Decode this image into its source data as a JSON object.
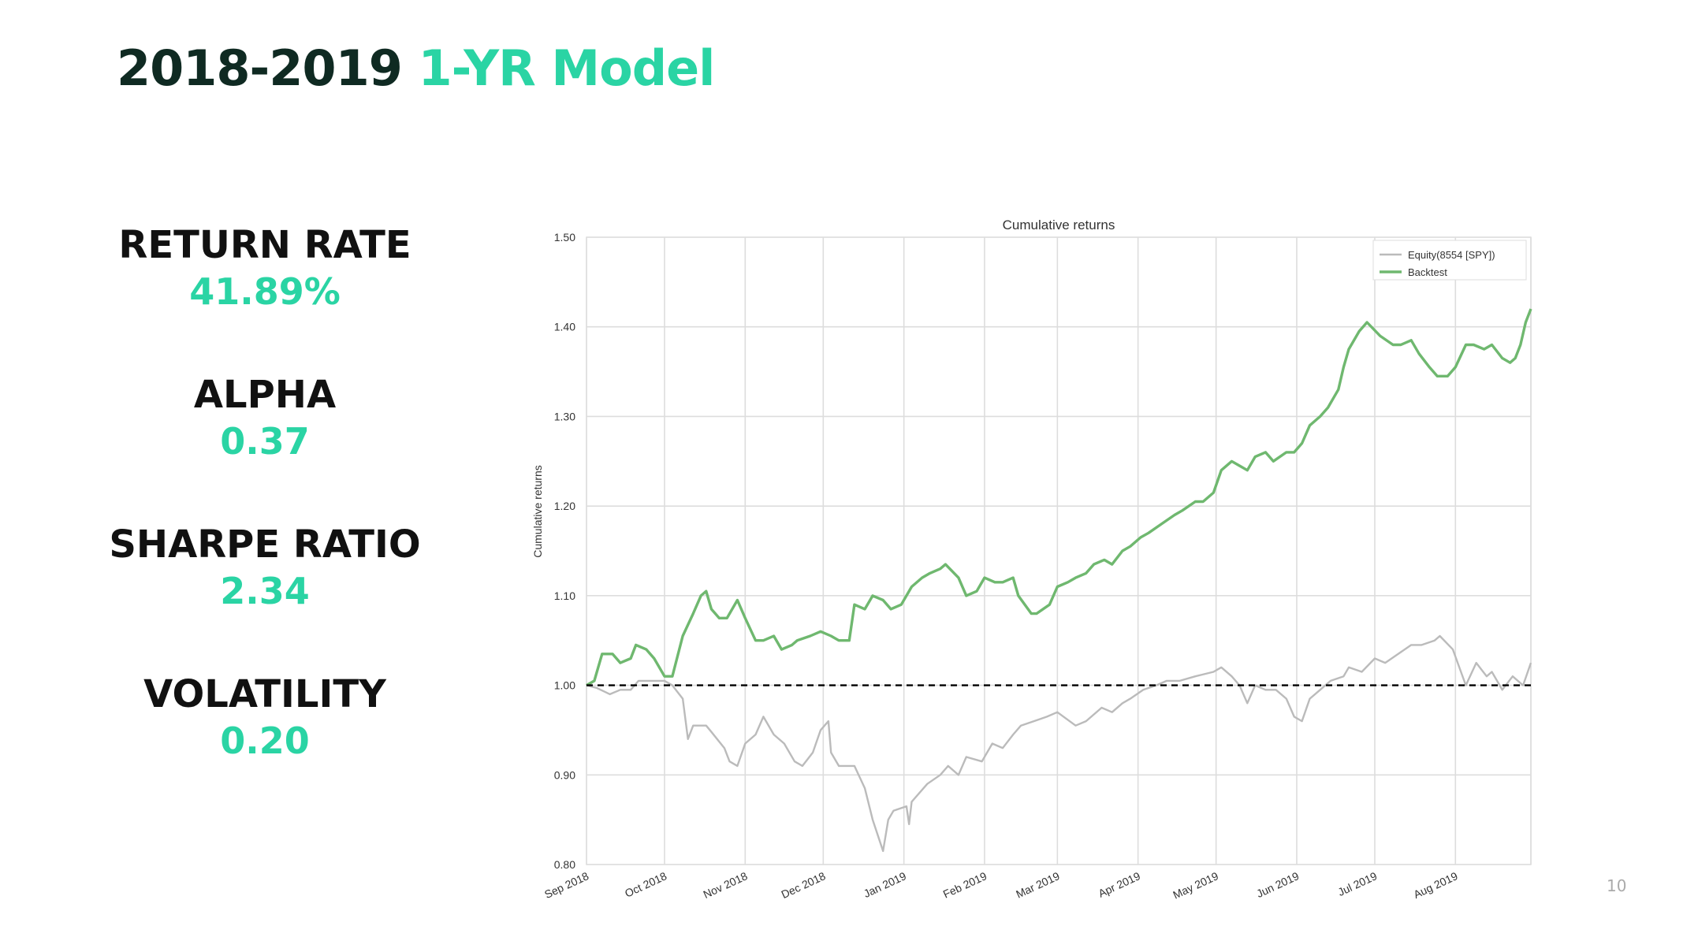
{
  "slide": {
    "title_main": "2018-2019",
    "title_accent": "1-YR Model",
    "page_number": "10",
    "accent_color": "#2ad4a4"
  },
  "metrics": [
    {
      "label": "RETURN RATE",
      "value": "41.89%"
    },
    {
      "label": "ALPHA",
      "value": "0.37"
    },
    {
      "label": "SHARPE RATIO",
      "value": "2.34"
    },
    {
      "label": "VOLATILITY",
      "value": "0.20"
    }
  ],
  "chart_data": {
    "type": "line",
    "title": "Cumulative returns",
    "xlabel": "",
    "ylabel": "Cumulative returns",
    "x_ticks": [
      "Sep 2018",
      "Oct 2018",
      "Nov 2018",
      "Dec 2018",
      "Jan 2019",
      "Feb 2019",
      "Mar 2019",
      "Apr 2019",
      "May 2019",
      "Jun 2019",
      "Jul 2019",
      "Aug 2019"
    ],
    "xlim": [
      "2018-09-01",
      "2019-08-30"
    ],
    "ylim": [
      0.8,
      1.5
    ],
    "y_ticks": [
      "0.80",
      "0.90",
      "1.00",
      "1.10",
      "1.20",
      "1.30",
      "1.40",
      "1.50"
    ],
    "grid": true,
    "legend_position": "top-right",
    "reference_line": {
      "y": 1.0,
      "style": "dashed",
      "color": "#000000"
    },
    "series": [
      {
        "name": "Equity(8554 [SPY])",
        "color": "#bbbbbb",
        "points": [
          [
            "2018-09-01",
            1.0
          ],
          [
            "2018-09-05",
            0.997
          ],
          [
            "2018-09-10",
            0.99
          ],
          [
            "2018-09-14",
            0.995
          ],
          [
            "2018-09-18",
            0.995
          ],
          [
            "2018-09-21",
            1.005
          ],
          [
            "2018-09-26",
            1.005
          ],
          [
            "2018-10-01",
            1.005
          ],
          [
            "2018-10-04",
            1.0
          ],
          [
            "2018-10-08",
            0.985
          ],
          [
            "2018-10-10",
            0.94
          ],
          [
            "2018-10-12",
            0.955
          ],
          [
            "2018-10-17",
            0.955
          ],
          [
            "2018-10-19",
            0.948
          ],
          [
            "2018-10-24",
            0.93
          ],
          [
            "2018-10-26",
            0.915
          ],
          [
            "2018-10-29",
            0.91
          ],
          [
            "2018-11-01",
            0.935
          ],
          [
            "2018-11-05",
            0.945
          ],
          [
            "2018-11-08",
            0.965
          ],
          [
            "2018-11-12",
            0.945
          ],
          [
            "2018-11-16",
            0.935
          ],
          [
            "2018-11-20",
            0.915
          ],
          [
            "2018-11-23",
            0.91
          ],
          [
            "2018-11-27",
            0.925
          ],
          [
            "2018-11-30",
            0.95
          ],
          [
            "2018-12-03",
            0.96
          ],
          [
            "2018-12-04",
            0.925
          ],
          [
            "2018-12-07",
            0.91
          ],
          [
            "2018-12-13",
            0.91
          ],
          [
            "2018-12-17",
            0.885
          ],
          [
            "2018-12-20",
            0.85
          ],
          [
            "2018-12-24",
            0.815
          ],
          [
            "2018-12-26",
            0.85
          ],
          [
            "2018-12-28",
            0.86
          ],
          [
            "2019-01-02",
            0.865
          ],
          [
            "2019-01-03",
            0.845
          ],
          [
            "2019-01-04",
            0.87
          ],
          [
            "2019-01-10",
            0.89
          ],
          [
            "2019-01-15",
            0.9
          ],
          [
            "2019-01-18",
            0.91
          ],
          [
            "2019-01-22",
            0.9
          ],
          [
            "2019-01-25",
            0.92
          ],
          [
            "2019-01-31",
            0.915
          ],
          [
            "2019-02-04",
            0.935
          ],
          [
            "2019-02-08",
            0.93
          ],
          [
            "2019-02-12",
            0.945
          ],
          [
            "2019-02-15",
            0.955
          ],
          [
            "2019-02-20",
            0.96
          ],
          [
            "2019-02-25",
            0.965
          ],
          [
            "2019-03-01",
            0.97
          ],
          [
            "2019-03-08",
            0.955
          ],
          [
            "2019-03-12",
            0.96
          ],
          [
            "2019-03-18",
            0.975
          ],
          [
            "2019-03-22",
            0.97
          ],
          [
            "2019-03-26",
            0.98
          ],
          [
            "2019-03-29",
            0.985
          ],
          [
            "2019-04-03",
            0.995
          ],
          [
            "2019-04-08",
            1.0
          ],
          [
            "2019-04-12",
            1.005
          ],
          [
            "2019-04-17",
            1.005
          ],
          [
            "2019-04-23",
            1.01
          ],
          [
            "2019-04-30",
            1.015
          ],
          [
            "2019-05-03",
            1.02
          ],
          [
            "2019-05-07",
            1.01
          ],
          [
            "2019-05-10",
            1.0
          ],
          [
            "2019-05-13",
            0.98
          ],
          [
            "2019-05-16",
            1.0
          ],
          [
            "2019-05-20",
            0.995
          ],
          [
            "2019-05-24",
            0.995
          ],
          [
            "2019-05-28",
            0.985
          ],
          [
            "2019-05-31",
            0.965
          ],
          [
            "2019-06-03",
            0.96
          ],
          [
            "2019-06-06",
            0.985
          ],
          [
            "2019-06-10",
            0.995
          ],
          [
            "2019-06-14",
            1.005
          ],
          [
            "2019-06-19",
            1.01
          ],
          [
            "2019-06-21",
            1.02
          ],
          [
            "2019-06-26",
            1.015
          ],
          [
            "2019-07-01",
            1.03
          ],
          [
            "2019-07-05",
            1.025
          ],
          [
            "2019-07-10",
            1.035
          ],
          [
            "2019-07-15",
            1.045
          ],
          [
            "2019-07-19",
            1.045
          ],
          [
            "2019-07-24",
            1.05
          ],
          [
            "2019-07-26",
            1.055
          ],
          [
            "2019-07-31",
            1.04
          ],
          [
            "2019-08-05",
            1.0
          ],
          [
            "2019-08-09",
            1.025
          ],
          [
            "2019-08-13",
            1.01
          ],
          [
            "2019-08-15",
            1.015
          ],
          [
            "2019-08-19",
            0.995
          ],
          [
            "2019-08-23",
            1.01
          ],
          [
            "2019-08-27",
            1.0
          ],
          [
            "2019-08-30",
            1.025
          ]
        ]
      },
      {
        "name": "Backtest",
        "color": "#6fb86f",
        "points": [
          [
            "2018-09-01",
            1.0
          ],
          [
            "2018-09-04",
            1.005
          ],
          [
            "2018-09-07",
            1.035
          ],
          [
            "2018-09-11",
            1.035
          ],
          [
            "2018-09-14",
            1.025
          ],
          [
            "2018-09-18",
            1.03
          ],
          [
            "2018-09-20",
            1.045
          ],
          [
            "2018-09-24",
            1.04
          ],
          [
            "2018-09-27",
            1.03
          ],
          [
            "2018-10-01",
            1.01
          ],
          [
            "2018-10-04",
            1.01
          ],
          [
            "2018-10-08",
            1.055
          ],
          [
            "2018-10-12",
            1.08
          ],
          [
            "2018-10-15",
            1.1
          ],
          [
            "2018-10-17",
            1.105
          ],
          [
            "2018-10-19",
            1.085
          ],
          [
            "2018-10-22",
            1.075
          ],
          [
            "2018-10-25",
            1.075
          ],
          [
            "2018-10-29",
            1.095
          ],
          [
            "2018-11-01",
            1.075
          ],
          [
            "2018-11-05",
            1.05
          ],
          [
            "2018-11-08",
            1.05
          ],
          [
            "2018-11-12",
            1.055
          ],
          [
            "2018-11-15",
            1.04
          ],
          [
            "2018-11-19",
            1.045
          ],
          [
            "2018-11-21",
            1.05
          ],
          [
            "2018-11-26",
            1.055
          ],
          [
            "2018-11-30",
            1.06
          ],
          [
            "2018-12-04",
            1.055
          ],
          [
            "2018-12-07",
            1.05
          ],
          [
            "2018-12-11",
            1.05
          ],
          [
            "2018-12-13",
            1.09
          ],
          [
            "2018-12-17",
            1.085
          ],
          [
            "2018-12-20",
            1.1
          ],
          [
            "2018-12-24",
            1.095
          ],
          [
            "2018-12-27",
            1.085
          ],
          [
            "2018-12-31",
            1.09
          ],
          [
            "2019-01-04",
            1.11
          ],
          [
            "2019-01-08",
            1.12
          ],
          [
            "2019-01-11",
            1.125
          ],
          [
            "2019-01-15",
            1.13
          ],
          [
            "2019-01-17",
            1.135
          ],
          [
            "2019-01-22",
            1.12
          ],
          [
            "2019-01-25",
            1.1
          ],
          [
            "2019-01-29",
            1.105
          ],
          [
            "2019-02-01",
            1.12
          ],
          [
            "2019-02-05",
            1.115
          ],
          [
            "2019-02-08",
            1.115
          ],
          [
            "2019-02-12",
            1.12
          ],
          [
            "2019-02-14",
            1.1
          ],
          [
            "2019-02-19",
            1.08
          ],
          [
            "2019-02-21",
            1.08
          ],
          [
            "2019-02-26",
            1.09
          ],
          [
            "2019-03-01",
            1.11
          ],
          [
            "2019-03-05",
            1.115
          ],
          [
            "2019-03-08",
            1.12
          ],
          [
            "2019-03-12",
            1.125
          ],
          [
            "2019-03-15",
            1.135
          ],
          [
            "2019-03-19",
            1.14
          ],
          [
            "2019-03-22",
            1.135
          ],
          [
            "2019-03-26",
            1.15
          ],
          [
            "2019-03-29",
            1.155
          ],
          [
            "2019-04-02",
            1.165
          ],
          [
            "2019-04-05",
            1.17
          ],
          [
            "2019-04-10",
            1.18
          ],
          [
            "2019-04-15",
            1.19
          ],
          [
            "2019-04-18",
            1.195
          ],
          [
            "2019-04-23",
            1.205
          ],
          [
            "2019-04-26",
            1.205
          ],
          [
            "2019-04-30",
            1.215
          ],
          [
            "2019-05-03",
            1.24
          ],
          [
            "2019-05-07",
            1.25
          ],
          [
            "2019-05-10",
            1.245
          ],
          [
            "2019-05-13",
            1.24
          ],
          [
            "2019-05-16",
            1.255
          ],
          [
            "2019-05-20",
            1.26
          ],
          [
            "2019-05-23",
            1.25
          ],
          [
            "2019-05-28",
            1.26
          ],
          [
            "2019-05-31",
            1.26
          ],
          [
            "2019-06-03",
            1.27
          ],
          [
            "2019-06-06",
            1.29
          ],
          [
            "2019-06-10",
            1.3
          ],
          [
            "2019-06-13",
            1.31
          ],
          [
            "2019-06-17",
            1.33
          ],
          [
            "2019-06-19",
            1.355
          ],
          [
            "2019-06-21",
            1.375
          ],
          [
            "2019-06-25",
            1.395
          ],
          [
            "2019-06-28",
            1.405
          ],
          [
            "2019-07-03",
            1.39
          ],
          [
            "2019-07-08",
            1.38
          ],
          [
            "2019-07-11",
            1.38
          ],
          [
            "2019-07-15",
            1.385
          ],
          [
            "2019-07-18",
            1.37
          ],
          [
            "2019-07-22",
            1.355
          ],
          [
            "2019-07-25",
            1.345
          ],
          [
            "2019-07-29",
            1.345
          ],
          [
            "2019-08-01",
            1.355
          ],
          [
            "2019-08-05",
            1.38
          ],
          [
            "2019-08-08",
            1.38
          ],
          [
            "2019-08-12",
            1.375
          ],
          [
            "2019-08-15",
            1.38
          ],
          [
            "2019-08-19",
            1.365
          ],
          [
            "2019-08-22",
            1.36
          ],
          [
            "2019-08-24",
            1.365
          ],
          [
            "2019-08-26",
            1.38
          ],
          [
            "2019-08-28",
            1.405
          ],
          [
            "2019-08-30",
            1.42
          ]
        ]
      }
    ]
  }
}
